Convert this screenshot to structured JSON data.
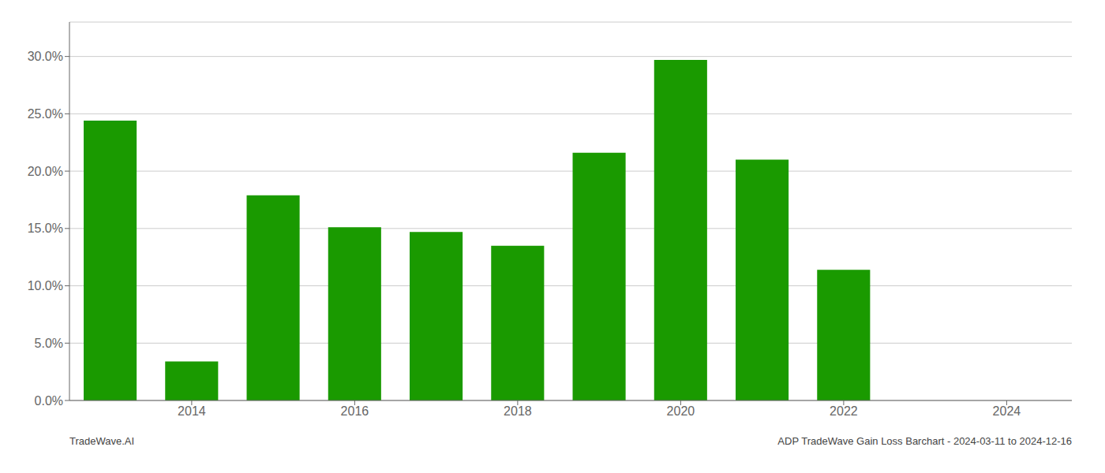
{
  "chart_data": {
    "type": "bar",
    "x": [
      2013,
      2014,
      2015,
      2016,
      2017,
      2018,
      2019,
      2020,
      2021,
      2022,
      2023,
      2024
    ],
    "values": [
      0.244,
      0.034,
      0.179,
      0.151,
      0.147,
      0.135,
      0.216,
      0.297,
      0.21,
      0.114,
      0.0,
      0.0
    ],
    "color": "#1a9a00",
    "xlim": [
      2012.5,
      2024.8
    ],
    "xticks": [
      2014,
      2016,
      2018,
      2020,
      2022,
      2024
    ],
    "ylim": [
      0,
      0.33
    ],
    "yticks": [
      {
        "value": 0.0,
        "label": "0.0%"
      },
      {
        "value": 0.05,
        "label": "5.0%"
      },
      {
        "value": 0.1,
        "label": "10.0%"
      },
      {
        "value": 0.15,
        "label": "15.0%"
      },
      {
        "value": 0.2,
        "label": "20.0%"
      },
      {
        "value": 0.25,
        "label": "25.0%"
      },
      {
        "value": 0.3,
        "label": "30.0%"
      }
    ],
    "grid": true,
    "annotations": [
      "TradeWave.AI",
      "ADP TradeWave Gain Loss Barchart - 2024-03-11 to 2024-12-16"
    ]
  }
}
